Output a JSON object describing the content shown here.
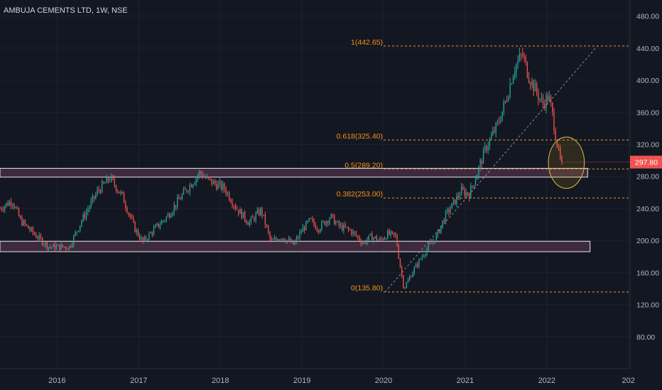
{
  "header": {
    "title": "AMBUJA CEMENTS LTD, 1W, NSE"
  },
  "colors": {
    "background": "#131722",
    "grid": "#1e222d",
    "up": "#26a69a",
    "down": "#ef5350",
    "fib": "#f7931a",
    "zone_fill": "#4a2f47",
    "axis_text": "#b2b5be",
    "price_badge": "#ef5350"
  },
  "chart_data": {
    "type": "candlestick",
    "interval": "1W",
    "x_range": [
      2015.3,
      2023.02
    ],
    "ylim": [
      40,
      500
    ],
    "y_ticks": [
      80,
      120,
      160,
      200,
      240,
      280,
      320,
      360,
      400,
      440,
      480
    ],
    "y_tick_labels": [
      "80.00",
      "120.00",
      "160.00",
      "200.00",
      "240.00",
      "280.00",
      "320.00",
      "360.00",
      "400.00",
      "440.00",
      "480.00"
    ],
    "x_ticks": [
      {
        "t": 2016,
        "label": "2016"
      },
      {
        "t": 2017,
        "label": "2017"
      },
      {
        "t": 2018,
        "label": "2018"
      },
      {
        "t": 2019,
        "label": "2019"
      },
      {
        "t": 2020,
        "label": "2020"
      },
      {
        "t": 2021,
        "label": "2021"
      },
      {
        "t": 2022,
        "label": "2022"
      },
      {
        "t": 2023,
        "label": "202"
      }
    ],
    "last_price": 297.8,
    "last_price_label": "297.80",
    "price_path": [
      [
        2015.3,
        240
      ],
      [
        2015.45,
        250
      ],
      [
        2015.55,
        225
      ],
      [
        2015.75,
        205
      ],
      [
        2015.9,
        192
      ],
      [
        2016.15,
        192
      ],
      [
        2016.3,
        225
      ],
      [
        2016.5,
        262
      ],
      [
        2016.65,
        278
      ],
      [
        2016.8,
        255
      ],
      [
        2016.95,
        215
      ],
      [
        2017.05,
        198
      ],
      [
        2017.2,
        215
      ],
      [
        2017.35,
        230
      ],
      [
        2017.5,
        252
      ],
      [
        2017.65,
        272
      ],
      [
        2017.75,
        285
      ],
      [
        2017.85,
        275
      ],
      [
        2018.05,
        265
      ],
      [
        2018.2,
        240
      ],
      [
        2018.35,
        222
      ],
      [
        2018.5,
        238
      ],
      [
        2018.62,
        198
      ],
      [
        2018.75,
        205
      ],
      [
        2018.9,
        195
      ],
      [
        2019.0,
        213
      ],
      [
        2019.1,
        225
      ],
      [
        2019.2,
        215
      ],
      [
        2019.35,
        230
      ],
      [
        2019.45,
        218
      ],
      [
        2019.6,
        212
      ],
      [
        2019.75,
        197
      ],
      [
        2019.85,
        205
      ],
      [
        2019.95,
        200
      ],
      [
        2020.05,
        208
      ],
      [
        2020.15,
        205
      ],
      [
        2020.2,
        170
      ],
      [
        2020.25,
        140
      ],
      [
        2020.35,
        160
      ],
      [
        2020.5,
        185
      ],
      [
        2020.65,
        205
      ],
      [
        2020.75,
        230
      ],
      [
        2020.85,
        245
      ],
      [
        2020.95,
        262
      ],
      [
        2021.05,
        258
      ],
      [
        2021.15,
        285
      ],
      [
        2021.25,
        315
      ],
      [
        2021.4,
        345
      ],
      [
        2021.5,
        375
      ],
      [
        2021.6,
        415
      ],
      [
        2021.7,
        432
      ],
      [
        2021.78,
        405
      ],
      [
        2021.85,
        390
      ],
      [
        2021.95,
        370
      ],
      [
        2022.02,
        380
      ],
      [
        2022.06,
        362
      ],
      [
        2022.12,
        325
      ],
      [
        2022.16,
        300
      ],
      [
        2022.2,
        297.8
      ]
    ],
    "fib_retracement": {
      "levels": [
        {
          "ratio": 1,
          "price": 442.65,
          "label": "1(442.65)"
        },
        {
          "ratio": 0.618,
          "price": 325.4,
          "label": "0.618(325.40)"
        },
        {
          "ratio": 0.5,
          "price": 289.2,
          "label": "0.5(289.20)"
        },
        {
          "ratio": 0.382,
          "price": 253.0,
          "label": "0.382(253.00)"
        },
        {
          "ratio": 0,
          "price": 135.8,
          "label": "0(135.80)"
        }
      ],
      "t_start": 2020.0,
      "trend_line": {
        "from": [
          2020.02,
          135.8
        ],
        "to": [
          2022.62,
          442.65
        ]
      }
    },
    "zones": [
      {
        "t_start": 2015.3,
        "t_end": 2022.5,
        "price_low": 279,
        "price_high": 290
      },
      {
        "t_start": 2015.3,
        "t_end": 2022.53,
        "price_low": 186,
        "price_high": 199
      }
    ],
    "highlight_ellipse": {
      "t_center": 2022.24,
      "price_center": 297,
      "t_radius": 0.22,
      "price_radius": 32
    }
  }
}
